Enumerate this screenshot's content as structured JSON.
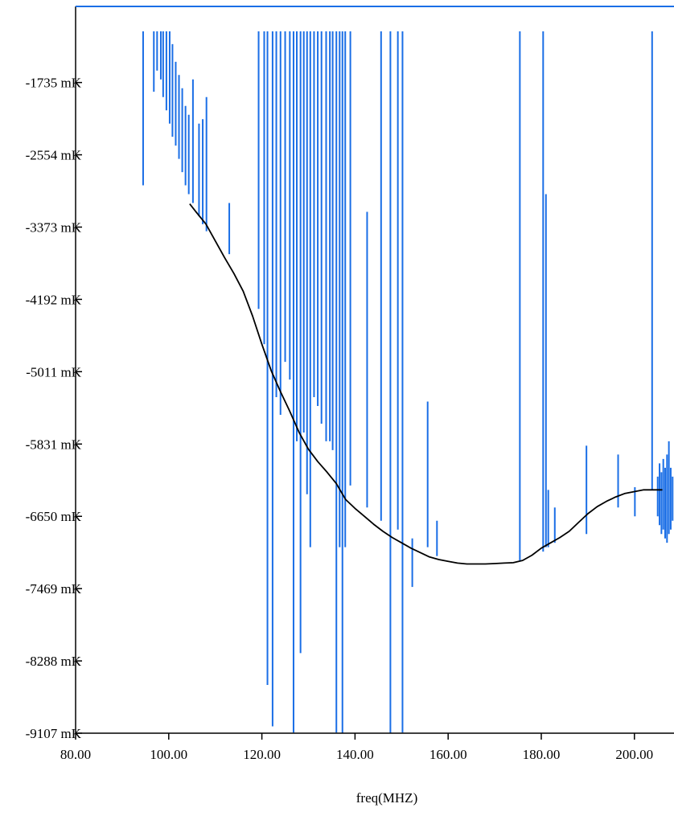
{
  "chart_data": {
    "type": "line",
    "title": "",
    "xlabel": "freq(MHZ)",
    "ylabel": "",
    "xlim": [
      80,
      208.5
    ],
    "ylim": [
      -9107,
      -873
    ],
    "x_ticks": [
      {
        "value": 80,
        "label": "80.00"
      },
      {
        "value": 100,
        "label": "100.00"
      },
      {
        "value": 120,
        "label": "120.00"
      },
      {
        "value": 140,
        "label": "140.00"
      },
      {
        "value": 160,
        "label": "160.00"
      },
      {
        "value": 180,
        "label": "180.00"
      },
      {
        "value": 200,
        "label": "200.00"
      }
    ],
    "y_ticks": [
      {
        "value": -1735,
        "label": "-1735 mK"
      },
      {
        "value": -2554,
        "label": "-2554 mK"
      },
      {
        "value": -3373,
        "label": "-3373 mK"
      },
      {
        "value": -4192,
        "label": "-4192 mK"
      },
      {
        "value": -5011,
        "label": "-5011 mK"
      },
      {
        "value": -5831,
        "label": "-5831 mK"
      },
      {
        "value": -6650,
        "label": "-6650 mK"
      },
      {
        "value": -7469,
        "label": "-7469 mK"
      },
      {
        "value": -8288,
        "label": "-8288 mK"
      },
      {
        "value": -9107,
        "label": "-9107 mK"
      }
    ],
    "grid": false,
    "legend": "none",
    "series": [
      {
        "color": "#000000",
        "x": [
          104.5,
          106,
          108,
          110,
          112,
          114,
          116,
          118,
          120,
          122,
          124,
          126,
          128,
          130,
          132,
          134,
          136,
          138,
          140,
          142,
          144,
          146,
          148,
          150,
          152,
          154,
          156,
          158,
          160,
          162,
          164,
          166,
          168,
          170,
          172,
          174,
          176,
          178,
          180,
          182,
          184,
          186,
          188,
          190,
          192,
          194,
          196,
          198,
          200,
          202,
          204,
          206
        ],
        "y": [
          -3110,
          -3210,
          -3340,
          -3530,
          -3720,
          -3900,
          -4100,
          -4380,
          -4700,
          -5000,
          -5240,
          -5460,
          -5700,
          -5890,
          -6030,
          -6150,
          -6280,
          -6460,
          -6560,
          -6650,
          -6740,
          -6820,
          -6890,
          -6950,
          -7010,
          -7060,
          -7110,
          -7140,
          -7160,
          -7180,
          -7190,
          -7190,
          -7190,
          -7185,
          -7180,
          -7175,
          -7150,
          -7090,
          -7010,
          -6950,
          -6890,
          -6820,
          -6720,
          -6620,
          -6540,
          -6480,
          -6430,
          -6390,
          -6370,
          -6350,
          -6350,
          -6350
        ]
      },
      {
        "color": "#1a6ee6",
        "spikes": [
          [
            94.5,
            -1155
          ],
          [
            94.5,
            -2900
          ],
          [
            96.8,
            -1155
          ],
          [
            96.8,
            -1840
          ],
          [
            97.5,
            -1155
          ],
          [
            97.5,
            -1600
          ],
          [
            98.3,
            -1155
          ],
          [
            98.3,
            -1700
          ],
          [
            98.8,
            -1155
          ],
          [
            98.8,
            -1900
          ],
          [
            99.5,
            -1155
          ],
          [
            99.5,
            -2050
          ],
          [
            100.2,
            -1155
          ],
          [
            100.2,
            -2200
          ],
          [
            100.8,
            -1300
          ],
          [
            100.8,
            -2350
          ],
          [
            101.5,
            -1500
          ],
          [
            101.5,
            -2450
          ],
          [
            102.2,
            -1650
          ],
          [
            102.2,
            -2600
          ],
          [
            102.9,
            -1800
          ],
          [
            102.9,
            -2750
          ],
          [
            103.6,
            -2000
          ],
          [
            103.6,
            -2900
          ],
          [
            104.3,
            -2100
          ],
          [
            104.3,
            -3000
          ],
          [
            105.2,
            -1700
          ],
          [
            105.2,
            -3100
          ],
          [
            106.5,
            -2200
          ],
          [
            106.5,
            -3250
          ],
          [
            107.3,
            -2150
          ],
          [
            107.3,
            -3340
          ],
          [
            108.1,
            -1900
          ],
          [
            108.1,
            -3420
          ],
          [
            113.0,
            -3100
          ],
          [
            113.0,
            -3680
          ],
          [
            119.3,
            -1155
          ],
          [
            119.3,
            -4300
          ],
          [
            120.5,
            -1155
          ],
          [
            120.5,
            -4700
          ],
          [
            121.2,
            -1155
          ],
          [
            121.2,
            -8560
          ],
          [
            122.3,
            -1155
          ],
          [
            122.3,
            -9030
          ],
          [
            123.1,
            -1155
          ],
          [
            123.1,
            -5300
          ],
          [
            124.0,
            -1155
          ],
          [
            124.0,
            -5500
          ],
          [
            125.0,
            -1155
          ],
          [
            125.0,
            -4900
          ],
          [
            126.0,
            -1155
          ],
          [
            126.0,
            -5100
          ],
          [
            126.8,
            -1155
          ],
          [
            126.8,
            -9100
          ],
          [
            127.5,
            -1155
          ],
          [
            127.5,
            -5800
          ],
          [
            128.3,
            -1155
          ],
          [
            128.3,
            -8200
          ],
          [
            129.0,
            -1155
          ],
          [
            129.0,
            -5700
          ],
          [
            129.7,
            -1155
          ],
          [
            129.7,
            -6400
          ],
          [
            130.4,
            -1155
          ],
          [
            130.4,
            -7000
          ],
          [
            131.2,
            -1155
          ],
          [
            131.2,
            -5300
          ],
          [
            132.0,
            -1155
          ],
          [
            132.0,
            -5400
          ],
          [
            132.8,
            -1155
          ],
          [
            132.8,
            -5600
          ],
          [
            133.8,
            -1155
          ],
          [
            133.8,
            -5800
          ],
          [
            134.6,
            -1155
          ],
          [
            134.6,
            -5800
          ],
          [
            135.2,
            -1155
          ],
          [
            135.2,
            -5900
          ],
          [
            136.0,
            -1155
          ],
          [
            136.0,
            -9100
          ],
          [
            136.7,
            -1155
          ],
          [
            136.7,
            -7000
          ],
          [
            137.3,
            -1155
          ],
          [
            137.3,
            -9107
          ],
          [
            137.9,
            -1155
          ],
          [
            137.9,
            -7000
          ],
          [
            139.0,
            -1155
          ],
          [
            139.0,
            -6300
          ],
          [
            142.6,
            -3200
          ],
          [
            142.6,
            -6550
          ],
          [
            145.6,
            -1155
          ],
          [
            145.6,
            -6700
          ],
          [
            147.6,
            -1155
          ],
          [
            147.6,
            -9107
          ],
          [
            149.2,
            -1155
          ],
          [
            149.2,
            -6800
          ],
          [
            150.2,
            -1155
          ],
          [
            150.2,
            -9100
          ],
          [
            152.3,
            -6900
          ],
          [
            152.3,
            -7450
          ],
          [
            155.6,
            -5350
          ],
          [
            155.6,
            -7000
          ],
          [
            157.6,
            -6700
          ],
          [
            157.6,
            -7100
          ],
          [
            175.4,
            -1155
          ],
          [
            175.4,
            -7150
          ],
          [
            180.4,
            -1155
          ],
          [
            180.4,
            -7050
          ],
          [
            181.0,
            -3000
          ],
          [
            181.0,
            -7000
          ],
          [
            181.5,
            -6350
          ],
          [
            181.5,
            -7000
          ],
          [
            182.9,
            -6550
          ],
          [
            182.9,
            -6950
          ],
          [
            189.7,
            -5850
          ],
          [
            189.7,
            -6850
          ],
          [
            196.5,
            -5950
          ],
          [
            196.5,
            -6550
          ],
          [
            200.1,
            -6320
          ],
          [
            200.1,
            -6650
          ],
          [
            203.8,
            -1155
          ],
          [
            203.8,
            -6350
          ],
          [
            205.0,
            -6200
          ],
          [
            205.0,
            -6650
          ],
          [
            205.4,
            -6050
          ],
          [
            205.4,
            -6750
          ],
          [
            205.8,
            -6150
          ],
          [
            205.8,
            -6850
          ],
          [
            206.2,
            -6000
          ],
          [
            206.2,
            -6800
          ],
          [
            206.6,
            -6100
          ],
          [
            206.6,
            -6900
          ],
          [
            207.0,
            -5950
          ],
          [
            207.0,
            -6950
          ],
          [
            207.4,
            -5800
          ],
          [
            207.4,
            -6850
          ],
          [
            207.8,
            -6100
          ],
          [
            207.8,
            -6800
          ],
          [
            208.2,
            -6200
          ],
          [
            208.2,
            -6700
          ]
        ]
      }
    ]
  }
}
